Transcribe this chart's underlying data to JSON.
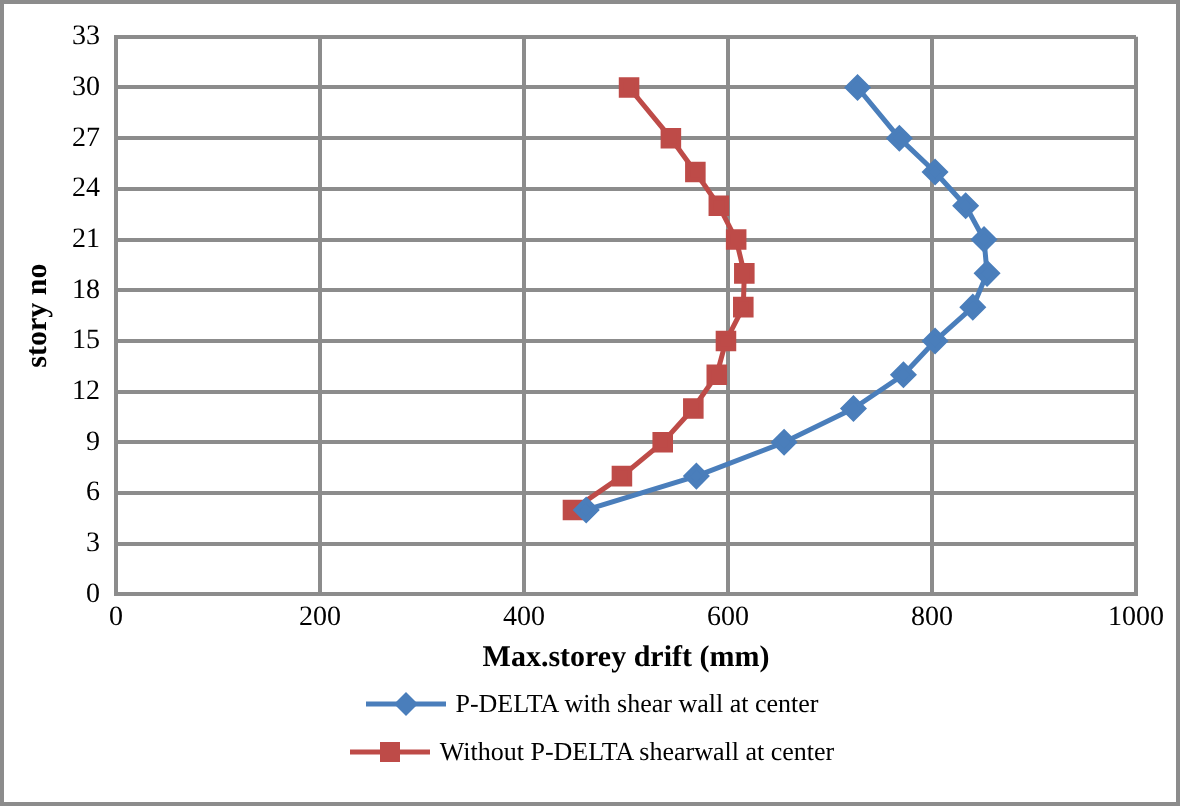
{
  "chart_data": {
    "type": "line",
    "xlabel": "Max.storey drift (mm)",
    "ylabel": "story no",
    "xlim": [
      0,
      1000
    ],
    "xticks": [
      0,
      200,
      400,
      600,
      800,
      1000
    ],
    "ylim": [
      0,
      33
    ],
    "yticks": [
      0,
      3,
      6,
      9,
      12,
      15,
      18,
      21,
      24,
      27,
      30,
      33
    ],
    "grid": true,
    "legend": "bottom",
    "line_style": "solid",
    "series": [
      {
        "name": "P-DELTA with shear wall at center",
        "color": "#4a7ebb",
        "marker": "diamond",
        "x": [
          727,
          768,
          803,
          833,
          851,
          854,
          840,
          803,
          772,
          723,
          655,
          569,
          461
        ],
        "values": [
          30,
          27,
          25,
          23,
          21,
          19,
          17,
          15,
          13,
          11,
          9,
          7,
          5
        ]
      },
      {
        "name": "Without P-DELTA shearwall at center",
        "color": "#be4b48",
        "marker": "square",
        "x": [
          503,
          544,
          568,
          591,
          608,
          616,
          615,
          598,
          589,
          566,
          536,
          496,
          448
        ],
        "values": [
          30,
          27,
          25,
          23,
          21,
          19,
          17,
          15,
          13,
          11,
          9,
          7,
          5
        ]
      }
    ]
  }
}
